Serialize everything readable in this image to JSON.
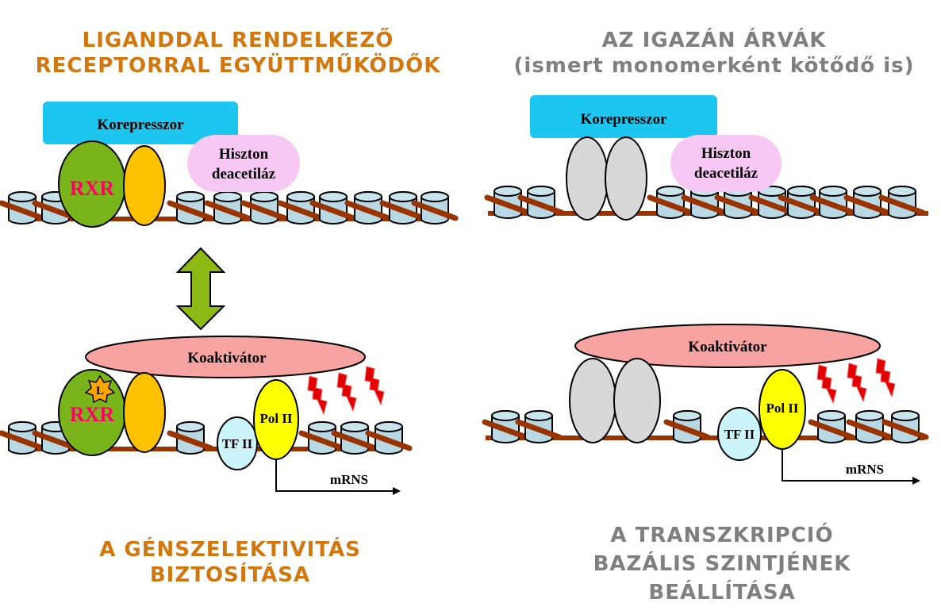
{
  "colors": {
    "orange_heading": "#D2770E",
    "gray_heading": "#7F7F7F",
    "corepressor": "#1CC6EE",
    "hdac": "#F7C8F3",
    "rxr": "#79B41A",
    "partner": "#FFC200",
    "orphan": "#D8D8D8",
    "coactivator": "#F7A3A1",
    "tfii": "#CCF4FB",
    "polii": "#FFFF00",
    "dna": "#993300",
    "nucleosome": "#B8D9E4",
    "lightning": "#E00000",
    "arrow": "#8DB915",
    "rxr_text": "#FF0066"
  },
  "left": {
    "title_line1": "LIGANDDAL RENDELKEZŐ",
    "title_line2": "RECEPTORRAL EGYÜTTMŰKÖDŐK",
    "bottom_line1": "A GÉNSZELEKTIVITÁS",
    "bottom_line2": "BIZTOSÍTÁSA"
  },
  "right": {
    "title_line1": "AZ IGAZÁN ÁRVÁK",
    "title_line2": "(ismert monomerként kötődő is)",
    "bottom_line1": "A TRANSZKRIPCIÓ",
    "bottom_line2": "BAZÁLIS SZINTJÉNEK",
    "bottom_line3": "BEÁLLÍTÁSA"
  },
  "labels": {
    "corepressor": "Korepresszor",
    "hdac_line1": "Hiszton",
    "hdac_line2": "deacetiláz",
    "rxr": "RXR",
    "ligand": "L",
    "coactivator": "Koaktivátor",
    "tfii": "TF II",
    "polii": "Pol II",
    "mrna": "mRNS"
  },
  "icons": {
    "exchange_arrow": "double-arrow-icon",
    "transcription_activity": "lightning-icon",
    "ligand": "star-burst-icon"
  }
}
